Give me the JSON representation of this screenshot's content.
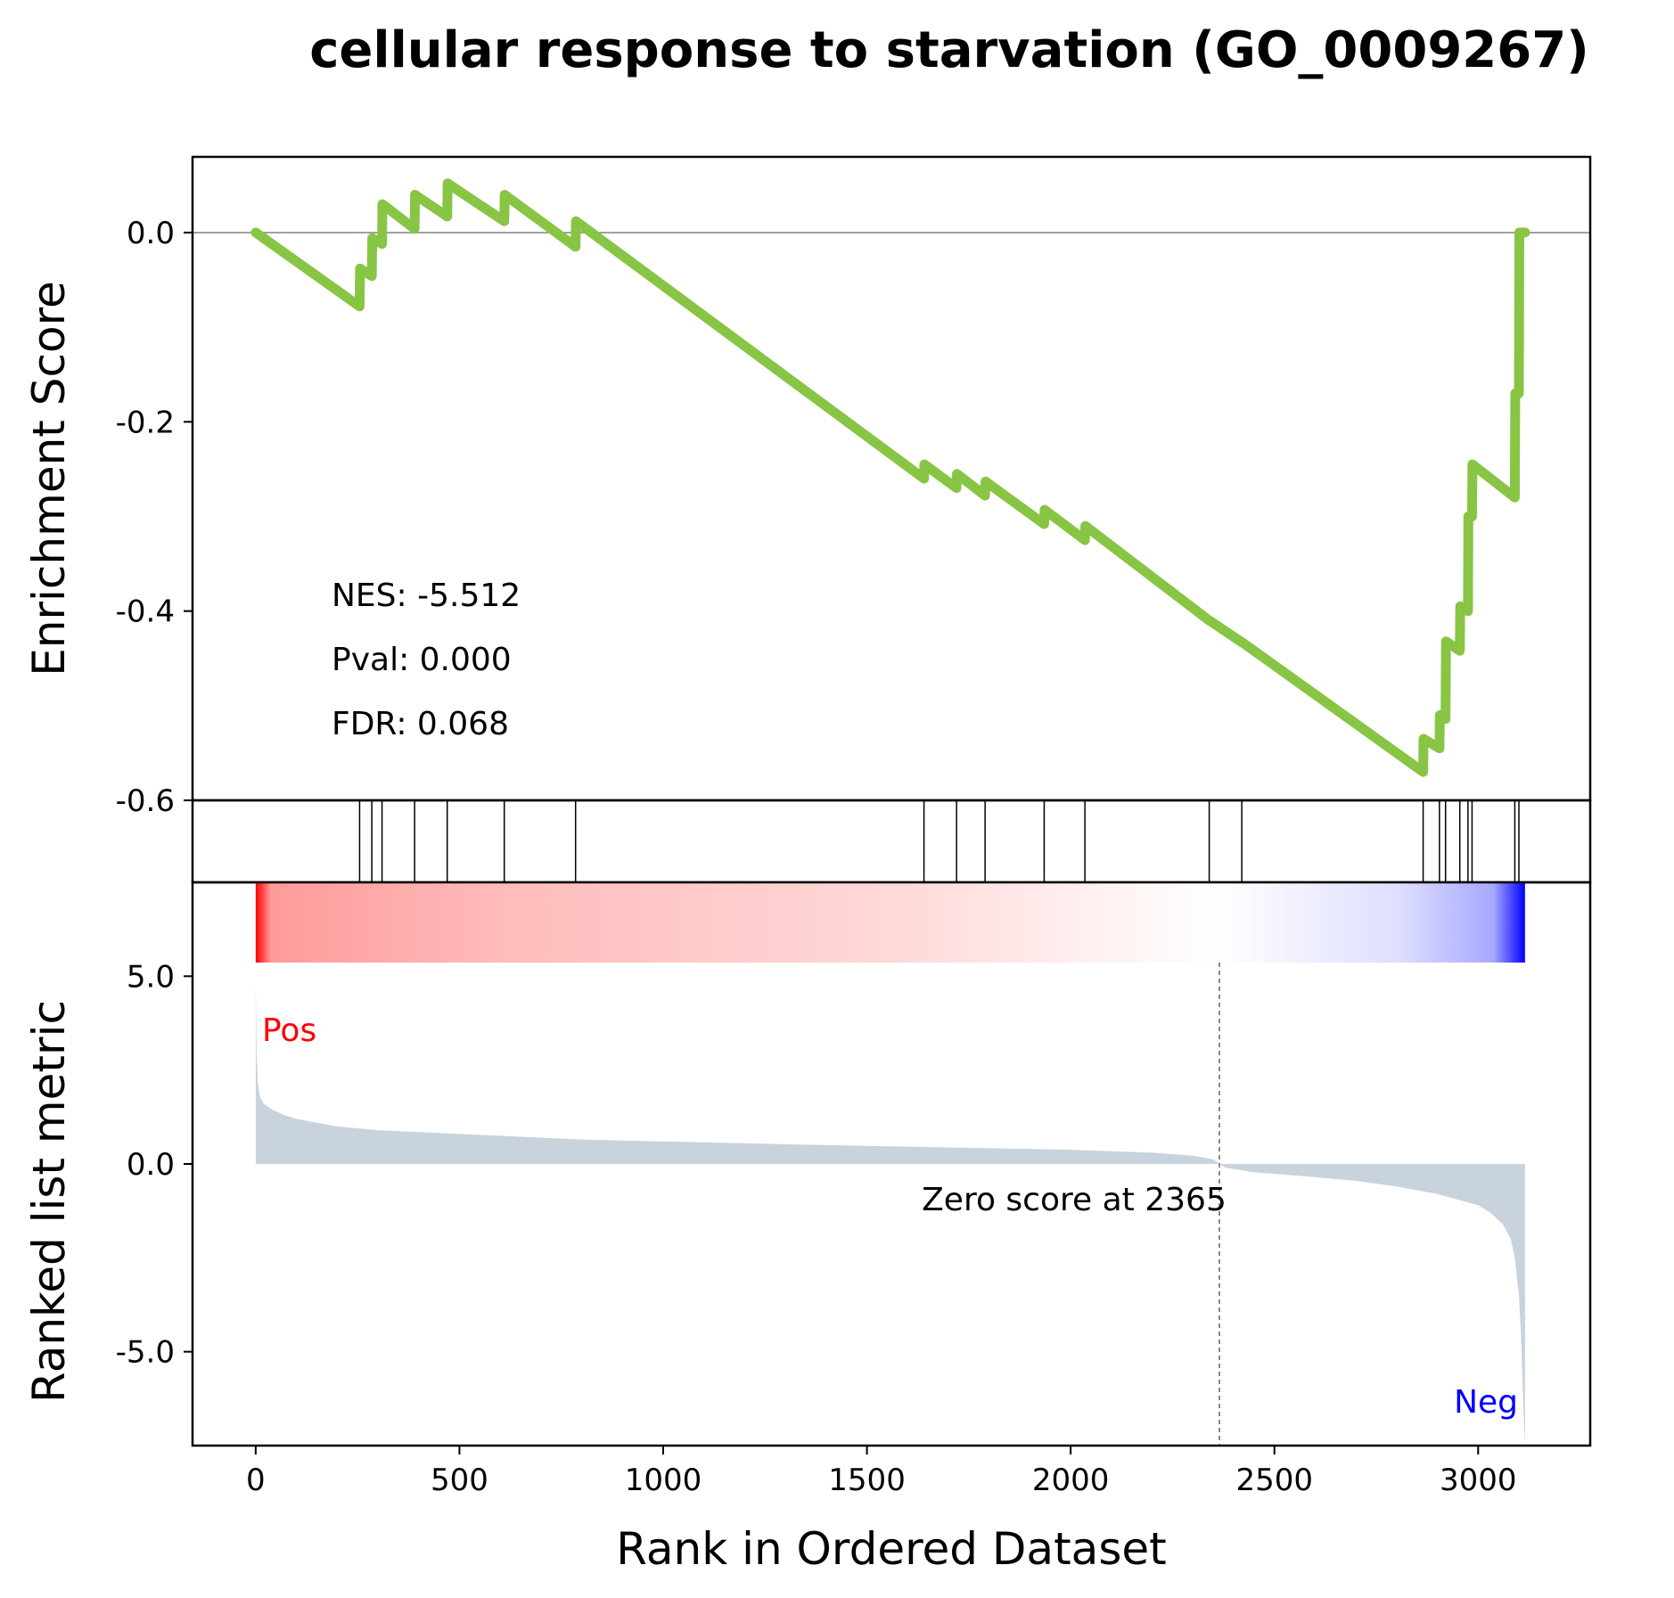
{
  "chart_data": {
    "type": "line",
    "title": "cellular response to starvation (GO_0009267)",
    "xlabel": "Rank in Ordered Dataset",
    "xlim": [
      -155,
      3275
    ],
    "xticks": [
      0,
      500,
      1000,
      1500,
      2000,
      2500,
      3000
    ],
    "es_panel": {
      "ylabel": "Enrichment Score",
      "ylim": [
        -0.6,
        0.08
      ],
      "yticks": [
        0.0,
        -0.2,
        -0.4,
        -0.6
      ],
      "ytick_labels": [
        "0.0",
        "-0.2",
        "-0.4",
        "-0.6"
      ],
      "line_color": "#88c544",
      "zero_line": true,
      "series": [
        {
          "x": [
            0,
            255,
            256,
            285,
            286,
            310,
            311,
            390,
            391,
            470,
            471,
            610,
            611,
            785,
            786,
            1640,
            1641,
            1720,
            1721,
            1790,
            1791,
            1935,
            1936,
            2035,
            2036,
            2340,
            2341,
            2420,
            2421,
            2865,
            2866,
            2905,
            2906,
            2920,
            2921,
            2955,
            2956,
            2975,
            2976,
            2985,
            2986,
            3090,
            3091,
            3100,
            3101,
            3115
          ],
          "y": [
            0.0,
            -0.078,
            -0.038,
            -0.046,
            -0.006,
            -0.012,
            0.03,
            0.004,
            0.04,
            0.017,
            0.052,
            0.012,
            0.04,
            -0.015,
            0.012,
            -0.26,
            -0.245,
            -0.27,
            -0.255,
            -0.278,
            -0.263,
            -0.308,
            -0.293,
            -0.325,
            -0.31,
            -0.41,
            -0.41,
            -0.433,
            -0.433,
            -0.57,
            -0.535,
            -0.545,
            -0.51,
            -0.514,
            -0.432,
            -0.442,
            -0.395,
            -0.4,
            -0.3,
            -0.3,
            -0.245,
            -0.28,
            -0.17,
            -0.17,
            0.0,
            0.0
          ]
        }
      ],
      "annotations": [
        "NES: -5.512",
        "Pval: 0.000",
        "FDR: 0.068"
      ]
    },
    "hits_panel": {
      "hit_ranks": [
        255,
        285,
        310,
        390,
        470,
        610,
        785,
        1640,
        1720,
        1790,
        1935,
        2035,
        2340,
        2420,
        2865,
        2905,
        2920,
        2955,
        2975,
        2985,
        3090,
        3100
      ]
    },
    "colorbar": {
      "colors": [
        "#ff0000",
        "#ffffff",
        "#0000ff"
      ],
      "range": [
        0,
        3115
      ],
      "white_at": 2365
    },
    "metric_panel": {
      "ylabel": "Ranked list metric",
      "ylim": [
        -7.5,
        7.5
      ],
      "yticks": [
        5.0,
        0.0,
        -5.0
      ],
      "ytick_labels": [
        "5.0",
        "0.0",
        "-5.0"
      ],
      "fill_color": "#c8d3dd",
      "series": [
        {
          "x": [
            0,
            2,
            5,
            10,
            20,
            40,
            70,
            100,
            150,
            200,
            300,
            400,
            600,
            800,
            1000,
            1200,
            1500,
            1800,
            2000,
            2200,
            2300,
            2350,
            2365,
            2380,
            2450,
            2600,
            2700,
            2800,
            2900,
            2950,
            3000,
            3030,
            3060,
            3080,
            3090,
            3095,
            3100,
            3105,
            3108,
            3112,
            3115
          ],
          "y": [
            4.8,
            3.0,
            2.2,
            1.8,
            1.6,
            1.45,
            1.3,
            1.2,
            1.1,
            1.0,
            0.9,
            0.85,
            0.75,
            0.65,
            0.6,
            0.55,
            0.48,
            0.42,
            0.38,
            0.3,
            0.22,
            0.12,
            0.0,
            -0.1,
            -0.22,
            -0.35,
            -0.45,
            -0.6,
            -0.8,
            -0.95,
            -1.1,
            -1.3,
            -1.6,
            -2.0,
            -2.5,
            -3.0,
            -3.5,
            -4.5,
            -5.5,
            -6.8,
            -7.5
          ]
        }
      ],
      "zero_cross": 2365,
      "annotations": {
        "pos_label": "Pos",
        "neg_label": "Neg",
        "zero_text": "Zero score at 2365"
      },
      "pos_color": "#ff0000",
      "neg_color": "#0000ff"
    }
  }
}
